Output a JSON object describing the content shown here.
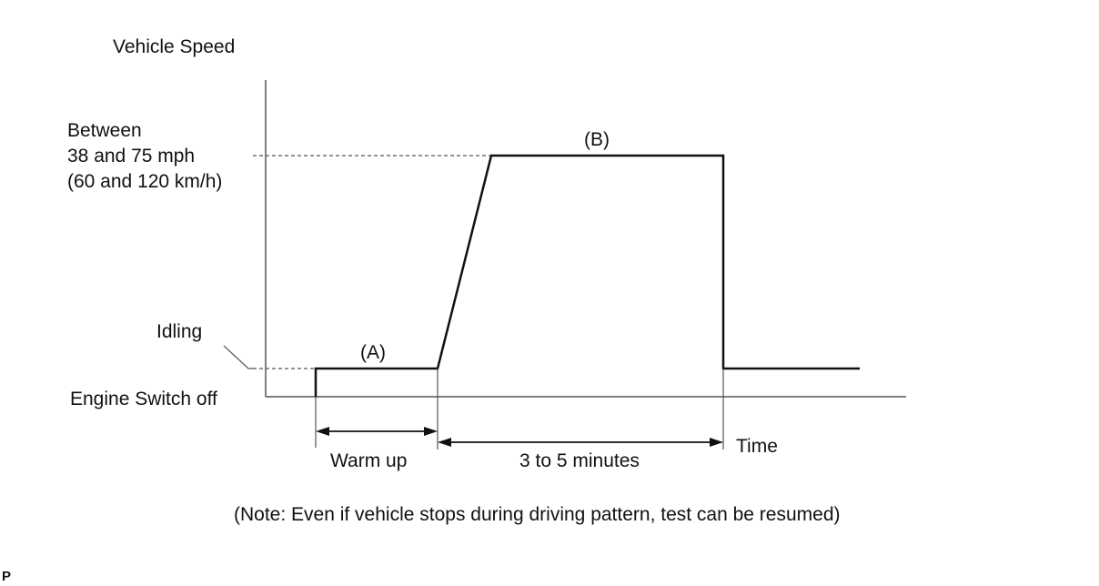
{
  "diagram": {
    "y_axis_title": "Vehicle Speed",
    "speed_band_label": [
      "Between",
      "38 and 75 mph",
      "(60 and 120 km/h)"
    ],
    "idling_label": "Idling",
    "engine_off_label": "Engine Switch off",
    "phase_a_label": "(A)",
    "phase_b_label": "(B)",
    "warm_up_label": "Warm up",
    "duration_label": "3 to 5  minutes",
    "time_label": "Time",
    "note": "(Note: Even if vehicle stops during driving pattern, test can be resumed)",
    "corner_mark": "P"
  },
  "colors": {
    "line": "#111111",
    "axis": "#555555",
    "background": "#ffffff"
  }
}
